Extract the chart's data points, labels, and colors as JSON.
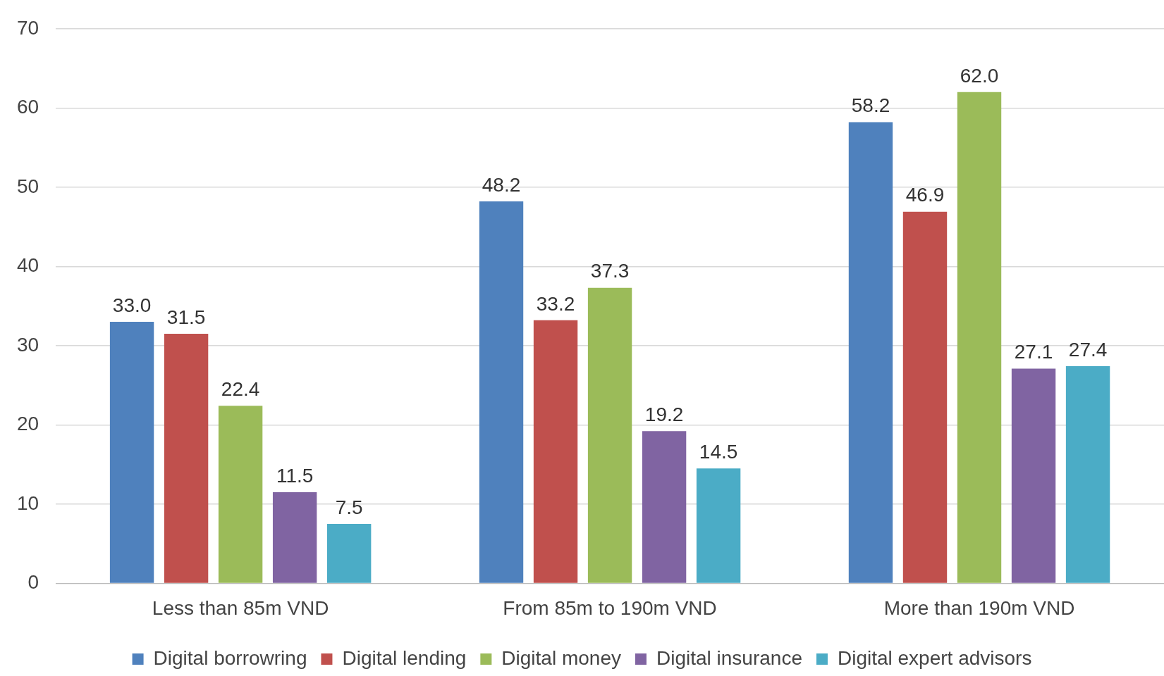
{
  "chart_data": {
    "type": "bar",
    "categories": [
      "Less than 85m VND",
      "From 85m to 190m VND",
      "More than 190m VND"
    ],
    "series": [
      {
        "name": "Digital borrowring",
        "color": "#4f81bd",
        "values": [
          33.0,
          48.2,
          58.2
        ],
        "value_labels": [
          "33.0",
          "48.2",
          "58.2"
        ]
      },
      {
        "name": "Digital lending",
        "color": "#c0504d",
        "values": [
          31.5,
          33.2,
          46.9
        ],
        "value_labels": [
          "31.5",
          "33.2",
          "46.9"
        ]
      },
      {
        "name": "Digital money",
        "color": "#9bbb59",
        "values": [
          22.4,
          37.3,
          62.0
        ],
        "value_labels": [
          "22.4",
          "37.3",
          "62.0"
        ]
      },
      {
        "name": "Digital insurance",
        "color": "#8064a2",
        "values": [
          11.5,
          19.2,
          27.1
        ],
        "value_labels": [
          "11.5",
          "19.2",
          "27.1"
        ]
      },
      {
        "name": "Digital expert advisors",
        "color": "#4bacc6",
        "values": [
          7.5,
          14.5,
          27.4
        ],
        "value_labels": [
          "7.5",
          "14.5",
          "27.4"
        ]
      }
    ],
    "ylim": [
      0,
      70
    ],
    "yticks": [
      0,
      10,
      20,
      30,
      40,
      50,
      60,
      70
    ],
    "grid": "y",
    "legend": "bottom"
  }
}
